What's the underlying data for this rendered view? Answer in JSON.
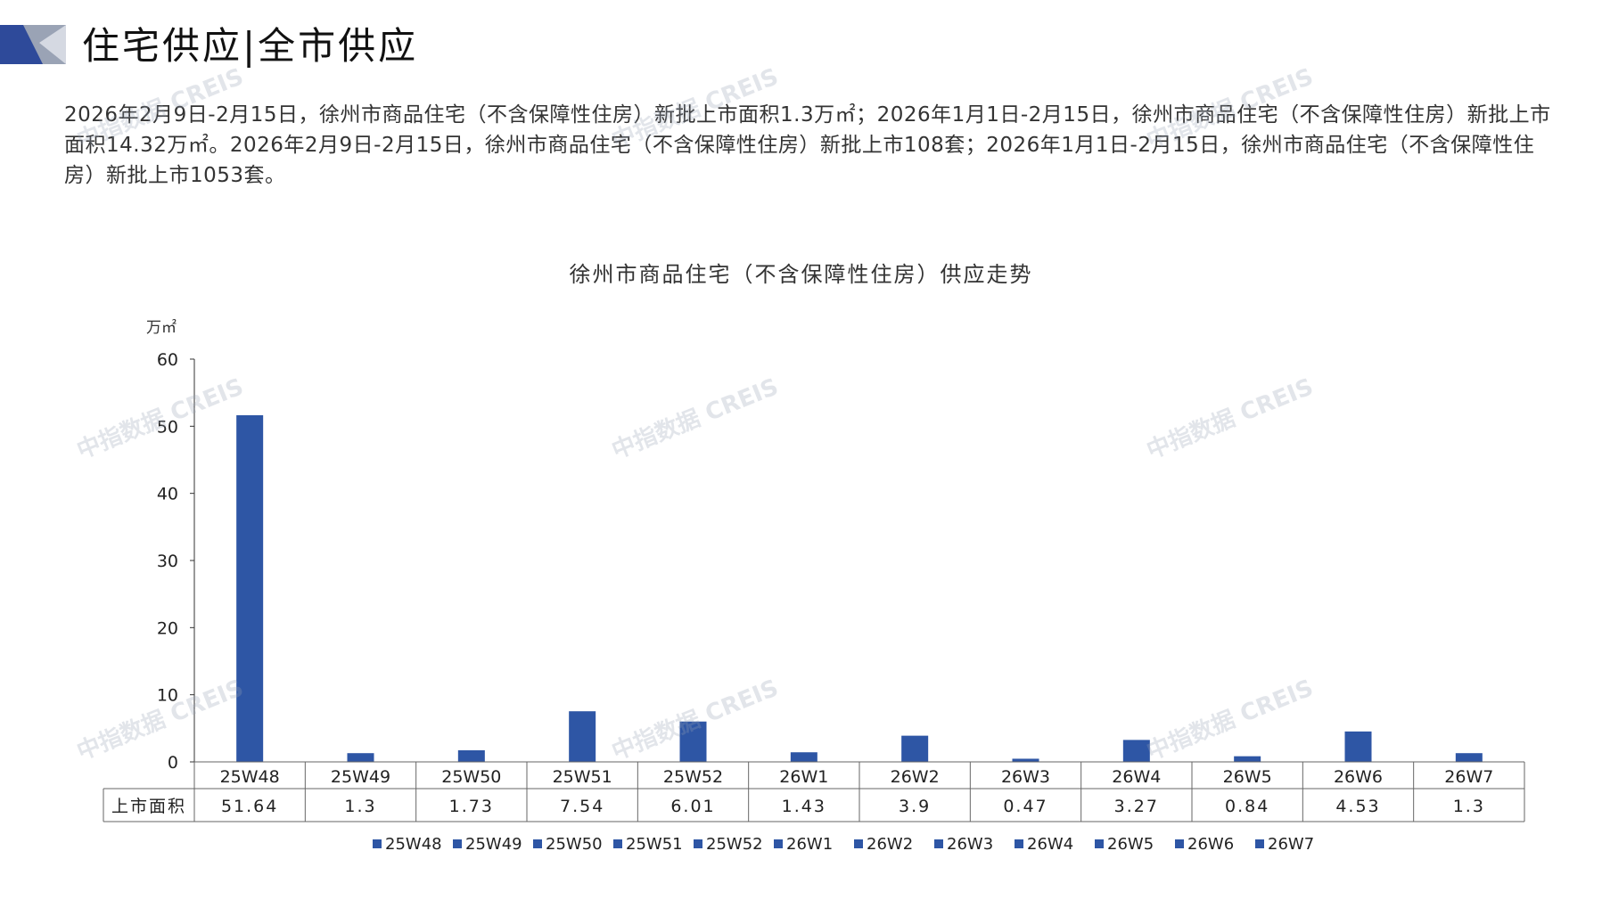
{
  "header": {
    "title": "住宅供应|全市供应"
  },
  "summary": "2026年2月9日-2月15日，徐州市商品住宅（不含保障性住房）新批上市面积1.3万㎡；2026年1月1日-2月15日，徐州市商品住宅（不含保障性住房）新批上市面积14.32万㎡。2026年2月9日-2月15日，徐州市商品住宅（不含保障性住房）新批上市108套；2026年1月1日-2月15日，徐州市商品住宅（不含保障性住房）新批上市1053套。",
  "watermark_text": "中指数据 CREIS",
  "colors": {
    "bar": "#2E56A5",
    "logo_dark": "#2E4A9A",
    "logo_light": "#9AA3B5"
  },
  "chart_data": {
    "type": "bar",
    "title": "徐州市商品住宅（不含保障性住房）供应走势",
    "ylabel": "万㎡",
    "ylim": [
      0,
      60
    ],
    "yticks": [
      0,
      10,
      20,
      30,
      40,
      50,
      60
    ],
    "categories": [
      "25W48",
      "25W49",
      "25W50",
      "25W51",
      "25W52",
      "26W1",
      "26W2",
      "26W3",
      "26W4",
      "26W5",
      "26W6",
      "26W7"
    ],
    "series": [
      {
        "name": "上市面积",
        "values": [
          51.64,
          1.3,
          1.73,
          7.54,
          6.01,
          1.43,
          3.9,
          0.47,
          3.27,
          0.84,
          4.53,
          1.3
        ],
        "labels": [
          "51.64",
          "1.3",
          "1.73",
          "7.54",
          "6.01",
          "1.43",
          "3.9",
          "0.47",
          "3.27",
          "0.84",
          "4.53",
          "1.3"
        ]
      }
    ],
    "legend": [
      "25W48",
      "25W49",
      "25W50",
      "25W51",
      "25W52",
      "26W1",
      "26W2",
      "26W3",
      "26W4",
      "26W5",
      "26W6",
      "26W7"
    ],
    "legend_position": "bottom",
    "data_table": true
  }
}
